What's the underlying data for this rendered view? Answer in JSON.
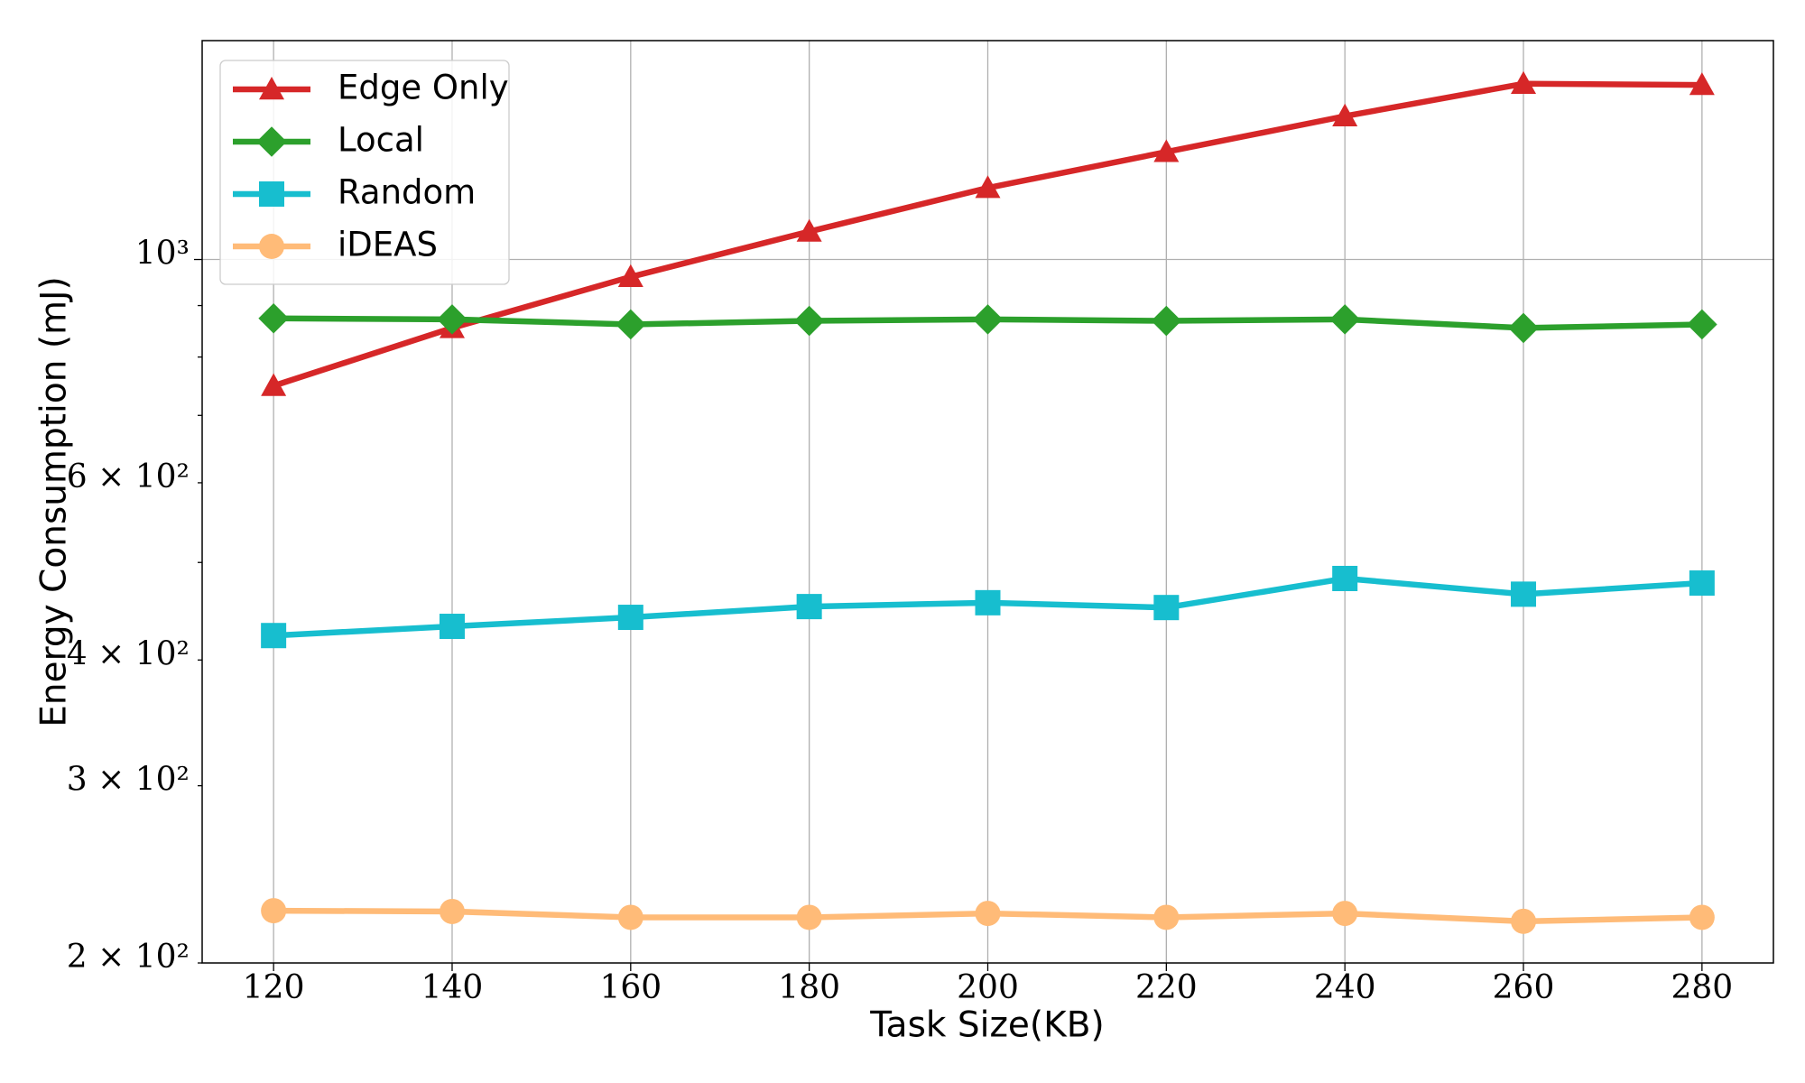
{
  "chart_data": {
    "type": "line",
    "xlabel": "Task Size(KB)",
    "ylabel": "Energy Consumption (mJ)",
    "x": [
      120,
      140,
      160,
      180,
      200,
      220,
      240,
      260,
      280
    ],
    "series": [
      {
        "name": "Edge Only",
        "color": "#d62728",
        "marker": "triangle",
        "values": [
          749,
          855,
          961,
          1066,
          1178,
          1279,
          1388,
          1495,
          1491
        ]
      },
      {
        "name": "Local",
        "color": "#2ca02c",
        "marker": "diamond",
        "values": [
          874,
          872,
          862,
          869,
          872,
          869,
          872,
          855,
          862
        ]
      },
      {
        "name": "Random",
        "color": "#17becf",
        "marker": "square",
        "values": [
          423,
          432,
          441,
          452,
          456,
          451,
          482,
          465,
          477
        ]
      },
      {
        "name": "iDEAS",
        "color": "#ffbb78",
        "marker": "circle",
        "values": [
          225.4,
          225,
          222,
          222,
          224,
          222,
          224,
          220,
          222
        ]
      }
    ],
    "xlim": [
      112,
      288
    ],
    "xticks": [
      120,
      140,
      160,
      180,
      200,
      220,
      240,
      260,
      280
    ],
    "ylim": [
      200,
      1650
    ],
    "log_y": true,
    "yticks": [
      {
        "value": 200,
        "label": "2 × 10²"
      },
      {
        "value": 300,
        "label": "3 × 10²"
      },
      {
        "value": 400,
        "label": "4 × 10²"
      },
      {
        "value": 600,
        "label": "6 × 10²"
      },
      {
        "value": 1000,
        "label": "10³"
      }
    ],
    "yminorticks": [
      500,
      700,
      800,
      900
    ],
    "grid": true,
    "legend": "upper left"
  }
}
